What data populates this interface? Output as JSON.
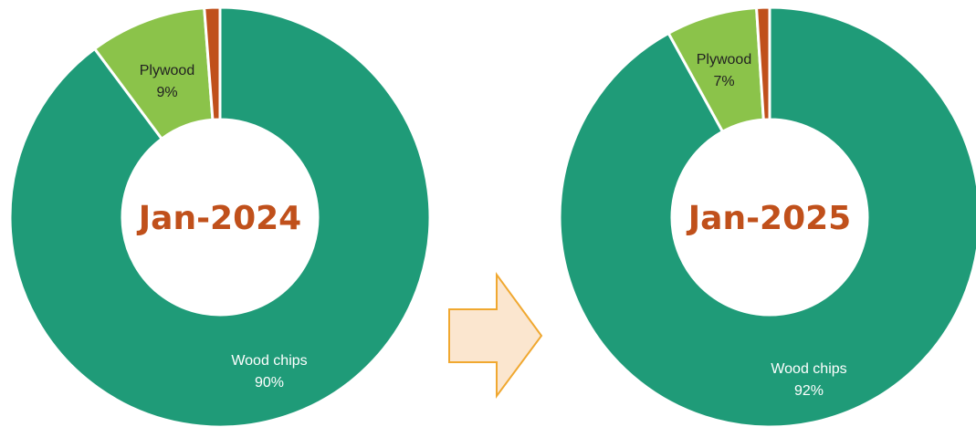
{
  "colors": {
    "wood_chips": "#1f9b78",
    "plywood": "#8bc34a",
    "other": "#c0501b",
    "center_text": "#c0501b",
    "arrow_fill": "#fbe6cf",
    "arrow_stroke": "#f0a830",
    "separator": "#ffffff"
  },
  "chart_data": [
    {
      "type": "pie",
      "title": "Jan-2024",
      "slices": [
        {
          "key": "wood_chips",
          "label": "Wood chips",
          "percent_label": "90%",
          "value": 90
        },
        {
          "key": "plywood",
          "label": "Plywood",
          "percent_label": "9%",
          "value": 9
        },
        {
          "key": "other",
          "label": "",
          "percent_label": "",
          "value": 1.2
        }
      ]
    },
    {
      "type": "pie",
      "title": "Jan-2025",
      "slices": [
        {
          "key": "wood_chips",
          "label": "Wood chips",
          "percent_label": "92%",
          "value": 92
        },
        {
          "key": "plywood",
          "label": "Plywood",
          "percent_label": "7%",
          "value": 7
        },
        {
          "key": "other",
          "label": "",
          "percent_label": "",
          "value": 1.0
        }
      ]
    }
  ],
  "connector": {
    "icon": "right-arrow-icon"
  }
}
